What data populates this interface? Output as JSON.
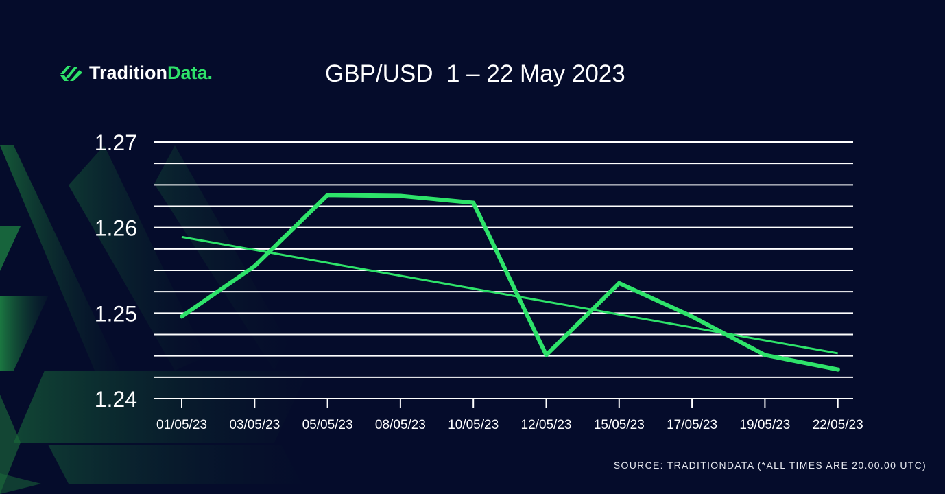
{
  "logo": {
    "icon": "tradition-data-logo-icon",
    "word1": "Tradition",
    "word2": "Data."
  },
  "title": "GBP/USD  1 – 22 May 2023",
  "source": "SOURCE: TRADITIONDATA (*ALL TIMES ARE 20.00.00 UTC)",
  "colors": {
    "background": "#050c2b",
    "accent": "#2ee36a",
    "grid": "#ffffff",
    "trend": "#2ee36a"
  },
  "chart_data": {
    "type": "line",
    "title": "GBP/USD  1 – 22 May 2023",
    "categories": [
      "01/05/23",
      "03/05/23",
      "05/05/23",
      "08/05/23",
      "10/05/23",
      "12/05/23",
      "15/05/23",
      "17/05/23",
      "19/05/23",
      "22/05/23"
    ],
    "series": [
      {
        "values": [
          1.2496,
          1.2555,
          1.2638,
          1.2637,
          1.2629,
          1.2451,
          1.2535,
          1.2496,
          1.2451,
          1.2434
        ]
      }
    ],
    "trendline": {
      "start": 1.2589,
      "end": 1.2453
    },
    "y_ticks": [
      "1.27",
      "1.26",
      "1.25",
      "1.24"
    ],
    "ylim": [
      1.24,
      1.27
    ],
    "grid": true,
    "xlabel": "",
    "ylabel": ""
  }
}
